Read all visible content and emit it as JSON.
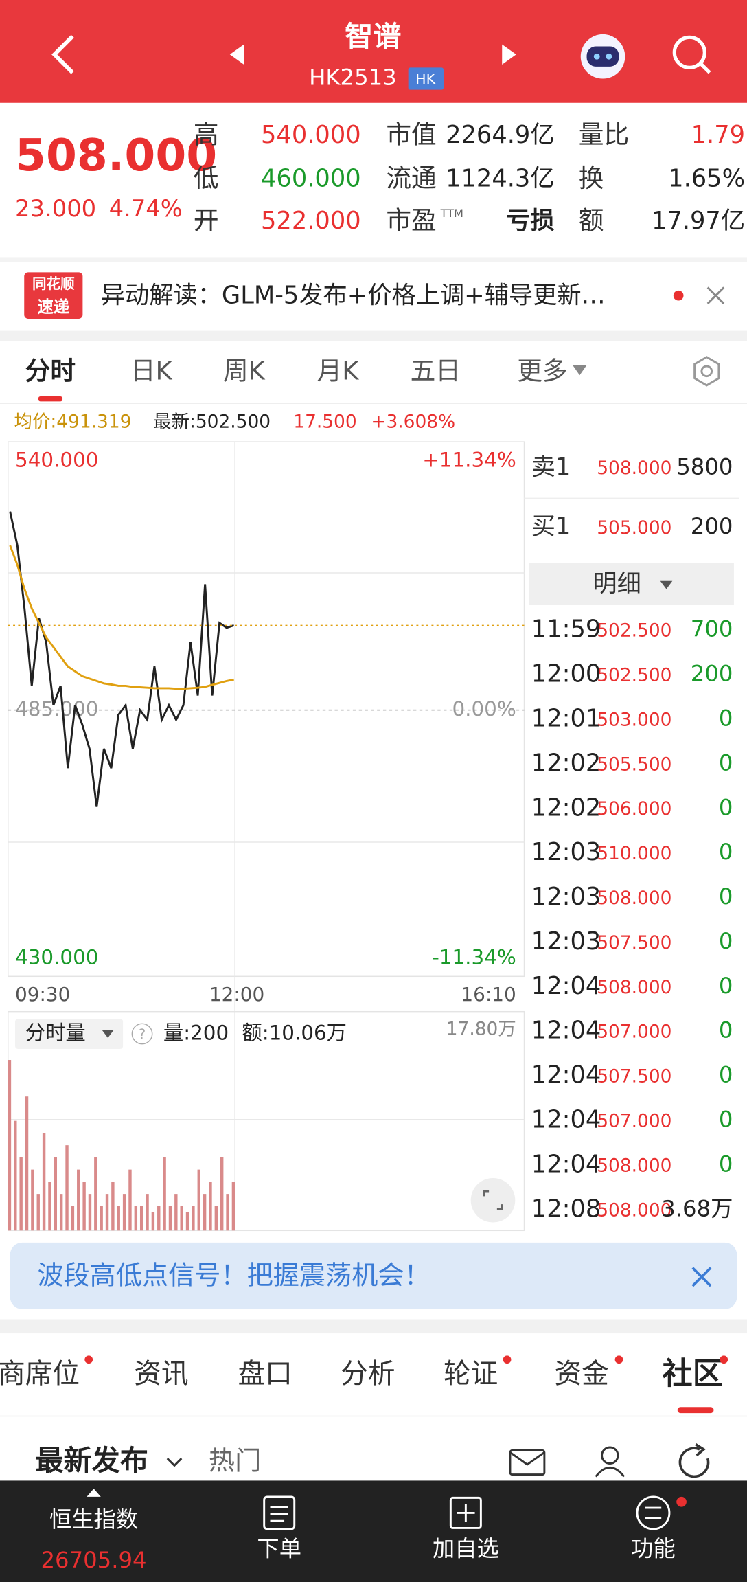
{
  "header": {
    "title": "智谱",
    "code": "HK2513",
    "market": "HK"
  },
  "quote": {
    "price": "508.000",
    "change": "23.000",
    "change_pct": "4.74%",
    "stats": [
      {
        "label": "高",
        "value": "540.000",
        "color": "#e93030"
      },
      {
        "label": "低",
        "value": "460.000",
        "color": "#1a9a2a"
      },
      {
        "label": "开",
        "value": "522.000",
        "color": "#e93030"
      },
      {
        "label": "市值",
        "value": "2264.9亿",
        "color": "#222222"
      },
      {
        "label": "流通",
        "value": "1124.3亿",
        "color": "#222222"
      },
      {
        "label": "市盈",
        "sup": "TTM",
        "value": "亏损",
        "color": "#222222"
      },
      {
        "label": "量比",
        "value": "1.79",
        "color": "#e93030"
      },
      {
        "label": "换",
        "value": "1.65%",
        "color": "#222222"
      },
      {
        "label": "额",
        "value": "17.97亿",
        "color": "#222222"
      }
    ]
  },
  "news": {
    "badge_top": "同花顺",
    "badge_bottom": "速递",
    "text": "异动解读：GLM-5发布+价格上调+辅导更新…"
  },
  "tabs": [
    "分时",
    "日K",
    "周K",
    "月K",
    "五日",
    "更多"
  ],
  "info": {
    "avg": "均价:491.319",
    "latest": "最新:502.500",
    "change": "17.500",
    "change_pct": "+3.608%"
  },
  "chart_data": {
    "type": "line",
    "ylim": [
      430,
      540
    ],
    "yticks": [
      {
        "value": 540,
        "label": "540.000"
      },
      {
        "value": 485,
        "label": "485.000"
      },
      {
        "value": 430,
        "label": "430.000"
      }
    ],
    "pct_labels": [
      "+11.34%",
      "0.00%",
      "-11.34%"
    ],
    "xticks": [
      "09:30",
      "12:00",
      "16:10"
    ],
    "series": [
      {
        "name": "最新",
        "color": "#222222",
        "values": [
          526,
          519,
          506,
          490,
          504,
          499,
          486,
          490,
          473,
          486,
          482,
          477,
          465,
          477,
          473,
          484,
          486,
          477,
          485,
          483,
          494,
          483,
          486,
          483,
          486,
          499,
          488,
          511,
          488,
          503,
          502,
          502.5
        ]
      },
      {
        "name": "均价",
        "color": "#e0a010",
        "values": [
          519,
          515,
          510,
          506,
          503,
          500,
          498,
          496,
          494,
          493,
          492,
          491.5,
          491,
          490.5,
          490.3,
          490,
          490,
          489.8,
          489.7,
          489.6,
          489.5,
          489.5,
          489.5,
          489.4,
          489.4,
          489.5,
          489.6,
          489.8,
          490.2,
          490.6,
          491,
          491.3
        ]
      }
    ]
  },
  "volume": {
    "type": "bar",
    "label": "分时量",
    "qty": "量:200",
    "amount": "额:10.06万",
    "color": "#d98a8a",
    "ylim": [
      0,
      17.8
    ],
    "yticks": [
      {
        "value": 17.8,
        "label": "17.80万"
      }
    ],
    "values": [
      14,
      9,
      6,
      11,
      5,
      3,
      8,
      4,
      6,
      3,
      7,
      2,
      5,
      4,
      3,
      6,
      2,
      3,
      4,
      2,
      3,
      5,
      2,
      2,
      3,
      1.5,
      2,
      6,
      2,
      3,
      2,
      1.5,
      2,
      5,
      3,
      4,
      2,
      6,
      3,
      4
    ]
  },
  "order_book": {
    "ask": {
      "label": "卖1",
      "price": "508.000",
      "volume": "5800"
    },
    "bid": {
      "label": "买1",
      "price": "505.000",
      "volume": "200"
    },
    "detail_label": "明细",
    "trades": [
      {
        "time": "11:59",
        "price": "502.500",
        "volume": "700",
        "color": "#1a9a2a"
      },
      {
        "time": "12:00",
        "price": "502.500",
        "volume": "200",
        "color": "#1a9a2a"
      },
      {
        "time": "12:01",
        "price": "503.000",
        "volume": "0",
        "color": "#1a9a2a"
      },
      {
        "time": "12:02",
        "price": "505.500",
        "volume": "0",
        "color": "#1a9a2a"
      },
      {
        "time": "12:02",
        "price": "506.000",
        "volume": "0",
        "color": "#1a9a2a"
      },
      {
        "time": "12:03",
        "price": "510.000",
        "volume": "0",
        "color": "#1a9a2a"
      },
      {
        "time": "12:03",
        "price": "508.000",
        "volume": "0",
        "color": "#1a9a2a"
      },
      {
        "time": "12:03",
        "price": "507.500",
        "volume": "0",
        "color": "#1a9a2a"
      },
      {
        "time": "12:04",
        "price": "508.000",
        "volume": "0",
        "color": "#1a9a2a"
      },
      {
        "time": "12:04",
        "price": "507.000",
        "volume": "0",
        "color": "#1a9a2a"
      },
      {
        "time": "12:04",
        "price": "507.500",
        "volume": "0",
        "color": "#1a9a2a"
      },
      {
        "time": "12:04",
        "price": "507.000",
        "volume": "0",
        "color": "#1a9a2a"
      },
      {
        "time": "12:04",
        "price": "508.000",
        "volume": "0",
        "color": "#1a9a2a"
      },
      {
        "time": "12:08",
        "price": "508.000",
        "volume": "3.68万",
        "color": "#222222"
      }
    ]
  },
  "banner": {
    "text": "波段高低点信号！把握震荡机会！"
  },
  "section_tabs": [
    "商席位",
    "资讯",
    "盘口",
    "分析",
    "轮证",
    "资金",
    "社区"
  ],
  "feed": {
    "latest": "最新发布",
    "hot": "热门"
  },
  "nav": {
    "index_name": "恒生指数",
    "index_value": "26705.94",
    "items": [
      "下单",
      "加自选",
      "功能"
    ]
  }
}
